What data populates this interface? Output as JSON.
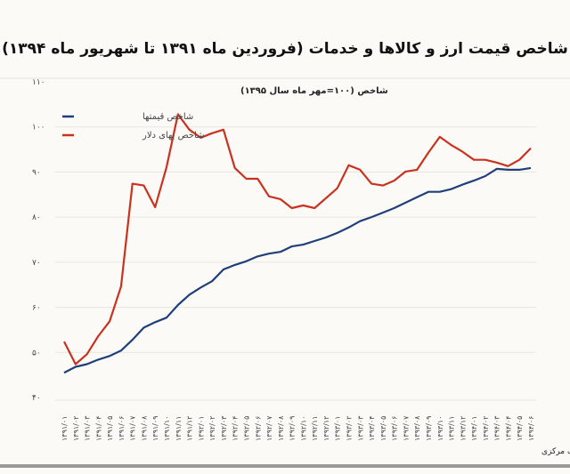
{
  "chart_data": {
    "type": "line",
    "title": "شاخص قیمت ارز و کالاها و خدمات (فروردین ماه ۱۳۹۱ تا شهریور ماه ۱۳۹۴)",
    "ylabel": "شاخص (۱۰۰=مهر ماه سال ۱۳۹۵)",
    "xlabel": "",
    "source": "تحلیل و استنتاج: احسان سلطانی بر اساس داده های بانک مرکزی",
    "ylim": [
      40,
      110
    ],
    "yticks": [
      110,
      100,
      90,
      80,
      70,
      60,
      50,
      40
    ],
    "ytick_labels": [
      "۱۱۰",
      "۱۰۰",
      "۹۰",
      "۸۰",
      "۷۰",
      "۶۰",
      "۵۰",
      "۴۰"
    ],
    "grid": true,
    "legend_position": "top-left",
    "categories": [
      "۱۳۹۱/۰۱",
      "۱۳۹۱/۰۲",
      "۱۳۹۱/۰۳",
      "۱۳۹۱/۰۴",
      "۱۳۹۱/۰۵",
      "۱۳۹۱/۰۶",
      "۱۳۹۱/۰۷",
      "۱۳۹۱/۰۸",
      "۱۳۹۱/۰۹",
      "۱۳۹۱/۱۰",
      "۱۳۹۱/۱۱",
      "۱۳۹۱/۱۲",
      "۱۳۹۲/۰۱",
      "۱۳۹۲/۰۲",
      "۱۳۹۲/۰۳",
      "۱۳۹۲/۰۴",
      "۱۳۹۲/۰۵",
      "۱۳۹۲/۰۶",
      "۱۳۹۲/۰۷",
      "۱۳۹۲/۰۸",
      "۱۳۹۲/۰۹",
      "۱۳۹۲/۱۰",
      "۱۳۹۲/۱۱",
      "۱۳۹۲/۱۲",
      "۱۳۹۳/۰۱",
      "۱۳۹۳/۰۲",
      "۱۳۹۳/۰۳",
      "۱۳۹۳/۰۴",
      "۱۳۹۳/۰۵",
      "۱۳۹۳/۰۶",
      "۱۳۹۳/۰۷",
      "۱۳۹۳/۰۸",
      "۱۳۹۳/۰۹",
      "۱۳۹۳/۱۰",
      "۱۳۹۳/۱۱",
      "۱۳۹۳/۱۲",
      "۱۳۹۴/۰۱",
      "۱۳۹۴/۰۲",
      "۱۳۹۴/۰۳",
      "۱۳۹۴/۰۴",
      "۱۳۹۴/۰۵",
      "۱۳۹۴/۰۶"
    ],
    "series": [
      {
        "name": "شاخص قیمتها",
        "color": "#1f3f7a",
        "values": [
          45.5,
          46.8,
          47.4,
          48.4,
          49.2,
          50.4,
          52.8,
          55.5,
          56.7,
          57.7,
          60.5,
          62.8,
          64.4,
          65.8,
          68.4,
          69.4,
          70.2,
          71.3,
          71.9,
          72.3,
          73.5,
          73.9,
          74.7,
          75.5,
          76.5,
          77.7,
          79.1,
          80.0,
          81.0,
          82.0,
          83.2,
          84.4,
          85.6,
          85.6,
          86.2,
          87.2,
          88.1,
          89.1,
          90.7,
          90.5,
          90.5,
          90.9
        ]
      },
      {
        "name": "شاخص بهای دلار",
        "color": "#c8321f",
        "values": [
          52.4,
          47.4,
          49.6,
          53.6,
          56.9,
          64.6,
          87.4,
          87.0,
          82.2,
          91.1,
          102.8,
          99.4,
          97.6,
          98.6,
          99.4,
          90.9,
          88.5,
          88.5,
          84.6,
          84.0,
          82.0,
          82.6,
          82.0,
          84.2,
          86.4,
          91.5,
          90.5,
          87.4,
          87.0,
          88.1,
          90.1,
          90.5,
          94.3,
          97.8,
          96.0,
          94.5,
          92.7,
          92.7,
          92.1,
          91.3,
          92.7,
          95.3
        ]
      }
    ]
  }
}
